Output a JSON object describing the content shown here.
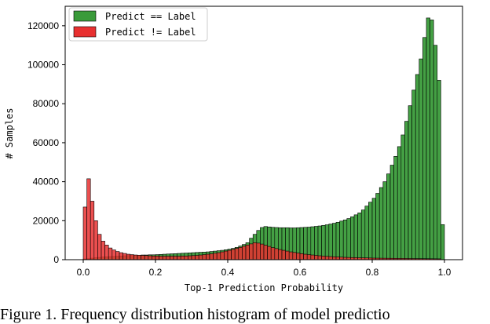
{
  "caption": "Figure 1. Frequency distribution histogram of model predictio",
  "chart_data": {
    "type": "bar",
    "xlabel": "Top-1 Prediction Probability",
    "ylabel": "# Samples",
    "xlim": [
      -0.05,
      1.05
    ],
    "ylim": [
      0,
      130000
    ],
    "xticks": [
      "0.0",
      "0.2",
      "0.4",
      "0.6",
      "0.8",
      "1.0"
    ],
    "yticks": [
      "0",
      "20000",
      "40000",
      "60000",
      "80000",
      "100000",
      "120000"
    ],
    "bin_width": 0.01,
    "bin_start": 0.0,
    "grid": false,
    "legend_position": "top-left",
    "series": [
      {
        "name": "Predict == Label",
        "color": "#3a9b3a",
        "values": [
          400,
          500,
          800,
          1000,
          1200,
          1400,
          1500,
          1600,
          1700,
          1800,
          1900,
          2000,
          2100,
          2200,
          2300,
          2300,
          2400,
          2400,
          2500,
          2500,
          2600,
          2700,
          2800,
          2900,
          3000,
          3100,
          3200,
          3300,
          3400,
          3500,
          3600,
          3700,
          3800,
          3900,
          4000,
          4200,
          4400,
          4600,
          4800,
          5100,
          5400,
          5800,
          6300,
          7000,
          7800,
          8700,
          11000,
          13000,
          15000,
          16500,
          17000,
          16800,
          16600,
          16500,
          16400,
          16400,
          16400,
          16300,
          16300,
          16400,
          16500,
          16600,
          16700,
          16900,
          17100,
          17300,
          17600,
          17900,
          18300,
          18700,
          19200,
          19800,
          20400,
          21100,
          22000,
          23000,
          24000,
          25500,
          27500,
          29500,
          31500,
          34000,
          37000,
          40000,
          44000,
          48500,
          53000,
          58000,
          64000,
          71000,
          79000,
          87000,
          95000,
          103000,
          114000,
          124000,
          123000,
          110000,
          92000,
          18000
        ]
      },
      {
        "name": "Predict != Label",
        "color": "#e83030",
        "values": [
          27000,
          41500,
          30000,
          20000,
          13000,
          9500,
          7500,
          6000,
          5000,
          4200,
          3600,
          3200,
          2800,
          2600,
          2400,
          2300,
          2200,
          2100,
          2000,
          1900,
          1900,
          1800,
          1800,
          1800,
          1800,
          1800,
          1800,
          1900,
          1900,
          2000,
          2100,
          2200,
          2400,
          2600,
          2800,
          3000,
          3300,
          3600,
          4000,
          4400,
          4800,
          5300,
          5800,
          6300,
          6900,
          7500,
          8100,
          8700,
          8500,
          8000,
          7400,
          6800,
          6200,
          5700,
          5200,
          4800,
          4400,
          4000,
          3700,
          3400,
          3100,
          2800,
          2600,
          2400,
          2200,
          2000,
          1850,
          1700,
          1600,
          1500,
          1400,
          1300,
          1200,
          1150,
          1100,
          1050,
          1000,
          950,
          900,
          850,
          800,
          780,
          760,
          740,
          720,
          700,
          680,
          660,
          640,
          620,
          600,
          580,
          560,
          540,
          520,
          500,
          480,
          460,
          440,
          100
        ]
      }
    ]
  }
}
